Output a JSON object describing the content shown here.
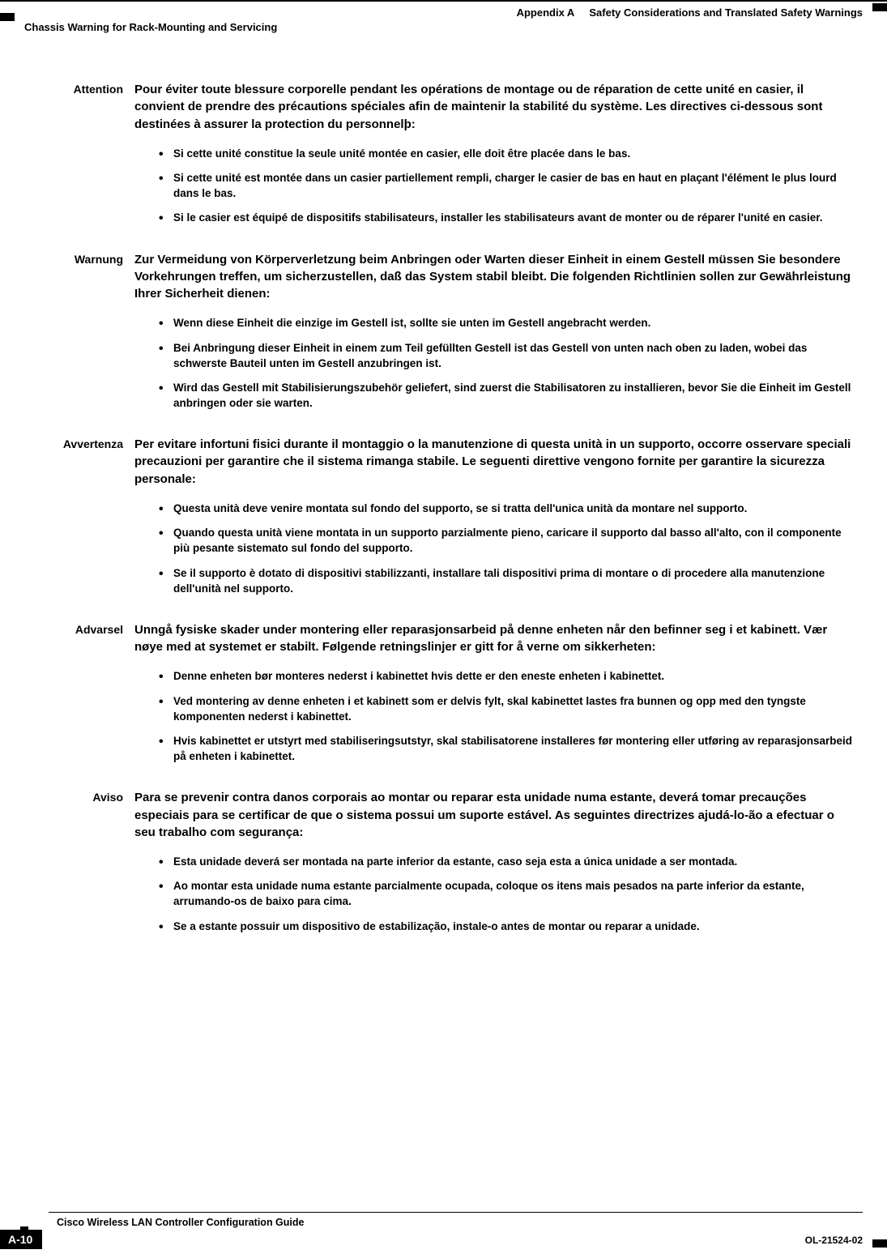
{
  "header": {
    "appendix_label": "Appendix A",
    "appendix_title": "Safety Considerations and Translated Safety Warnings",
    "section_title": "Chassis Warning for Rack-Mounting and Servicing"
  },
  "warnings": [
    {
      "label": "Attention",
      "intro": "Pour éviter toute blessure corporelle pendant les opérations de montage ou de réparation de cette unité en casier, il convient de prendre des précautions spéciales afin de maintenir la stabilité du système. Les directives ci-dessous sont destinées à assurer la protection du personnelþ:",
      "bullets": [
        "Si cette unité constitue la seule unité montée en casier, elle doit être placée dans le bas.",
        "Si cette unité est montée dans un casier partiellement rempli, charger le casier de bas en haut en plaçant l'élément le plus lourd dans le bas.",
        "Si le casier est équipé de dispositifs stabilisateurs, installer les stabilisateurs avant de monter ou de réparer l'unité en casier."
      ]
    },
    {
      "label": "Warnung",
      "intro": "Zur Vermeidung von Körperverletzung beim Anbringen oder Warten dieser Einheit in einem Gestell müssen Sie besondere Vorkehrungen treffen, um sicherzustellen, daß das System stabil bleibt. Die folgenden Richtlinien sollen zur Gewährleistung Ihrer Sicherheit dienen:",
      "bullets": [
        "Wenn diese Einheit die einzige im Gestell ist, sollte sie unten im Gestell angebracht werden.",
        "Bei Anbringung dieser Einheit in einem zum Teil gefüllten Gestell ist das Gestell von unten nach oben zu laden, wobei das schwerste Bauteil unten im Gestell anzubringen ist.",
        "Wird das Gestell mit Stabilisierungszubehör geliefert, sind zuerst die Stabilisatoren zu installieren, bevor Sie die Einheit im Gestell anbringen oder sie warten."
      ]
    },
    {
      "label": "Avvertenza",
      "intro": "Per evitare infortuni fisici durante il montaggio o la manutenzione di questa unità in un supporto, occorre osservare speciali precauzioni per garantire che il sistema rimanga stabile. Le seguenti direttive vengono fornite per garantire la sicurezza personale:",
      "bullets": [
        "Questa unità deve venire montata sul fondo del supporto, se si tratta dell'unica unità da montare nel supporto.",
        "Quando questa unità viene montata in un supporto parzialmente pieno, caricare il supporto dal basso all'alto, con il componente più pesante sistemato sul fondo del supporto.",
        "Se il supporto è dotato di dispositivi stabilizzanti, installare tali dispositivi prima di montare o di procedere alla manutenzione dell'unità nel supporto."
      ]
    },
    {
      "label": "Advarsel",
      "intro": "Unngå fysiske skader under montering eller reparasjonsarbeid på denne enheten når den befinner seg i et kabinett. Vær nøye med at systemet er stabilt. Følgende retningslinjer er gitt for å verne om sikkerheten:",
      "bullets": [
        "Denne enheten bør monteres nederst i kabinettet hvis dette er den eneste enheten i kabinettet.",
        "Ved montering av denne enheten i et kabinett som er delvis fylt, skal kabinettet lastes fra bunnen og opp med den tyngste komponenten nederst i kabinettet.",
        "Hvis kabinettet er utstyrt med stabiliseringsutstyr, skal stabilisatorene installeres før montering eller utføring av reparasjonsarbeid på enheten i kabinettet."
      ]
    },
    {
      "label": "Aviso",
      "intro": "Para se prevenir contra danos corporais ao montar ou reparar esta unidade numa estante, deverá tomar precauções especiais para se certificar de que o sistema possui um suporte estável. As seguintes directrizes ajudá-lo-ão a efectuar o seu trabalho com segurança:",
      "bullets": [
        "Esta unidade deverá ser montada na parte inferior da estante, caso seja esta a única unidade a ser montada.",
        "Ao montar esta unidade numa estante parcialmente ocupada, coloque os itens mais pesados na parte inferior da estante, arrumando-os de baixo para cima.",
        "Se a estante possuir um dispositivo de estabilização, instale-o antes de montar ou reparar a unidade."
      ]
    }
  ],
  "footer": {
    "guide_title": "Cisco Wireless LAN Controller Configuration Guide",
    "page_number": "A-10",
    "doc_number": "OL-21524-02"
  }
}
